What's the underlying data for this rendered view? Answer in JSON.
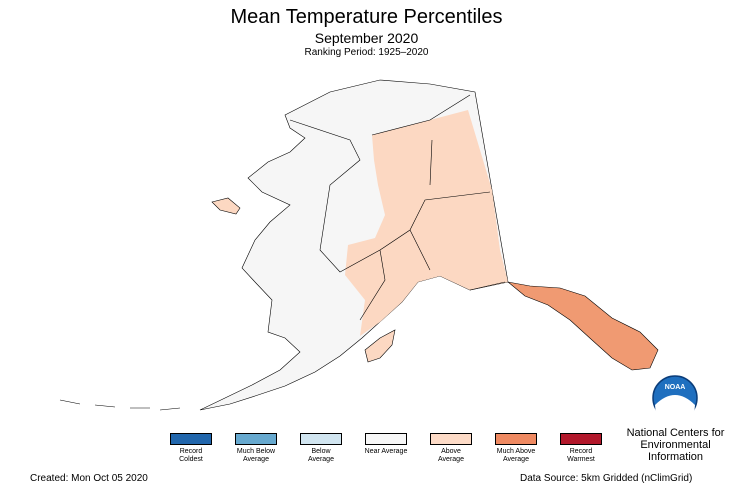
{
  "title": "Mean Temperature Percentiles",
  "subtitle": "September 2020",
  "ranking_period": "Ranking Period: 1925–2020",
  "legend": [
    {
      "label": "Record Coldest",
      "color": "#2166ac"
    },
    {
      "label": "Much Below Average",
      "color": "#67a9cf"
    },
    {
      "label": "Below Average",
      "color": "#d1e5f0"
    },
    {
      "label": "Near Average",
      "color": "#f7f7f7"
    },
    {
      "label": "Above Average",
      "color": "#fddbc7"
    },
    {
      "label": "Much Above Average",
      "color": "#ef8a62"
    },
    {
      "label": "Record Warmest",
      "color": "#b2182b"
    }
  ],
  "logo": {
    "text": "NOAA",
    "org": "National Centers for Environmental Information"
  },
  "created": "Created: Mon Oct 05 2020",
  "source": "Data Source: 5km Gridded (nClimGrid)"
}
